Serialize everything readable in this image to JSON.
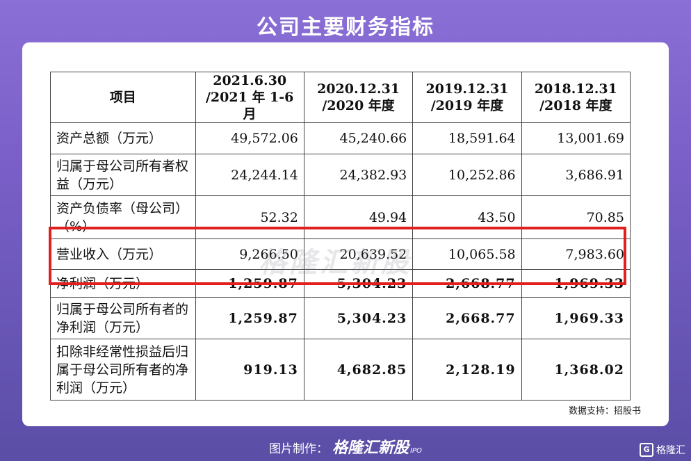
{
  "title": "公司主要财务指标",
  "table": {
    "headers": [
      {
        "line1": "项目",
        "line2": ""
      },
      {
        "line1": "2021.6.30",
        "line2": "/2021 年 1-6 月"
      },
      {
        "line1": "2020.12.31",
        "line2": "/2020 年度"
      },
      {
        "line1": "2019.12.31",
        "line2": "/2019 年度"
      },
      {
        "line1": "2018.12.31",
        "line2": "/2018 年度"
      }
    ],
    "rows": [
      {
        "label": "资产总额（万元）",
        "values": [
          "49,572.06",
          "45,240.66",
          "18,591.64",
          "13,001.69"
        ]
      },
      {
        "label": "归属于母公司所有者权益（万元）",
        "values": [
          "24,244.14",
          "24,382.93",
          "10,252.86",
          "3,686.91"
        ]
      },
      {
        "label": "资产负债率（母公司）（%）",
        "values": [
          "52.32",
          "49.94",
          "43.50",
          "70.85"
        ]
      },
      {
        "label": "营业收入（万元）",
        "values": [
          "9,266.50",
          "20,639.52",
          "10,065.58",
          "7,983.60"
        ]
      },
      {
        "label": "净利润（万元）",
        "values": [
          "1,259.87",
          "5,304.23",
          "2,668.77",
          "1,969.33"
        ]
      },
      {
        "label": "归属于母公司所有者的净利润（万元）",
        "values": [
          "1,259.87",
          "5,304.23",
          "2,668.77",
          "1,969.33"
        ]
      },
      {
        "label": "扣除非经常性损益后归属于母公司所有者的净利润（万元）",
        "values": [
          "919.13",
          "4,682.85",
          "2,128.19",
          "1,368.02"
        ]
      }
    ]
  },
  "watermark": "格隆汇新股",
  "source": "数据支持：招股书",
  "footer": {
    "prefix": "图片制作：",
    "brand": "格隆汇新股",
    "ipo": "IPO"
  },
  "corner_logo": {
    "icon": "G",
    "text": "格隆汇"
  },
  "colors": {
    "highlight_border": "#e0201e",
    "background": "#7a5fc8"
  }
}
